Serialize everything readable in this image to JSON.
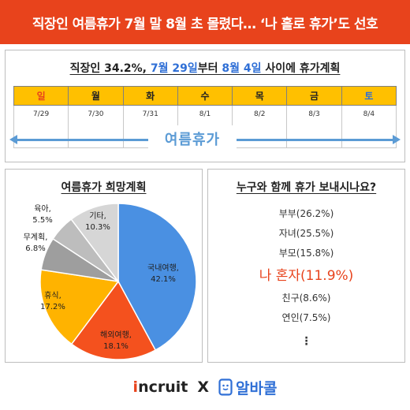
{
  "header": {
    "title": "직장인 여름휴가 7월 말 8월 초 몰렸다… ‘나 홀로 휴가’도 선호"
  },
  "top_panel": {
    "title_prefix": "직장인 34.2%, ",
    "title_date1": "7월 29일",
    "title_mid": "부터 ",
    "title_date2": "8월 4일",
    "title_suffix": " 사이에 휴가계획",
    "vacation_label": "여름휴가"
  },
  "calendar": {
    "days": [
      "일",
      "월",
      "화",
      "수",
      "목",
      "금",
      "토"
    ],
    "dates": [
      "7/29",
      "7/30",
      "7/31",
      "8/1",
      "8/2",
      "8/3",
      "8/4"
    ]
  },
  "left_panel": {
    "title": "여름휴가 희망계획"
  },
  "chart_data": {
    "type": "pie",
    "title": "여름휴가 희망계획",
    "slices": [
      {
        "label": "국내여행",
        "value": 42.1,
        "display": "42.1%",
        "color": "#4a90e2"
      },
      {
        "label": "해외여행",
        "value": 18.1,
        "display": "18.1%",
        "color": "#f4511e"
      },
      {
        "label": "휴식",
        "value": 17.2,
        "display": "17.2%",
        "color": "#ffb300"
      },
      {
        "label": "무계획",
        "value": 6.8,
        "display": "6.8%",
        "color": "#9e9e9e"
      },
      {
        "label": "육아",
        "value": 5.5,
        "display": "5.5%",
        "color": "#bdbdbd"
      },
      {
        "label": "기타",
        "value": 10.3,
        "display": "10.3%",
        "color": "#d6d6d6"
      }
    ]
  },
  "right_panel": {
    "title": "누구와 함께 휴가 보내시나요?",
    "items": [
      "부부(26.2%)",
      "자녀(25.5%)",
      "부모(15.8%)",
      "나 혼자(11.9%)",
      "친구(8.6%)",
      "연인(7.5%)"
    ],
    "highlight_index": 3,
    "ellipsis": "⋮"
  },
  "footer": {
    "incruit_prefix": "i",
    "incruit_name": "ncruit",
    "separator": "X",
    "albacall_name": "알바콜"
  }
}
